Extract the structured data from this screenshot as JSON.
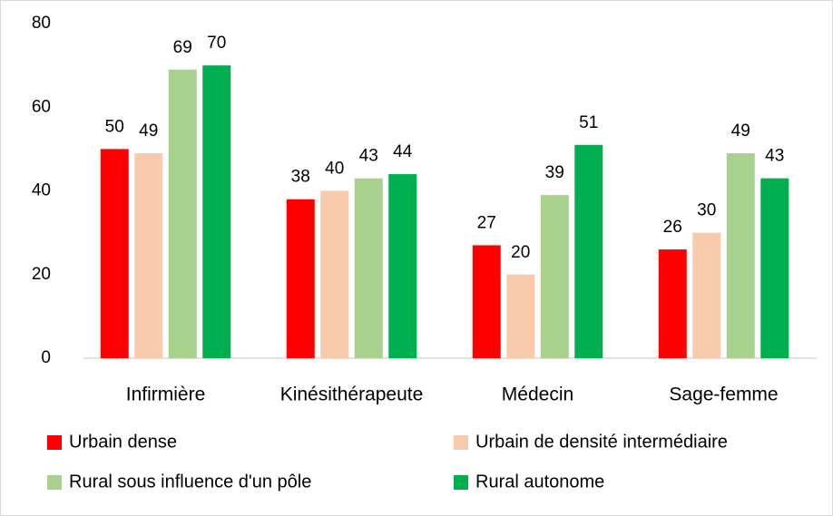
{
  "chart_data": {
    "type": "bar",
    "categories": [
      "Infirmière",
      "Kinésithérapeute",
      "Médecin",
      "Sage-femme"
    ],
    "series": [
      {
        "name": "Urbain dense",
        "color": "#ff0000",
        "values": [
          50,
          38,
          27,
          26
        ]
      },
      {
        "name": "Urbain de densité intermédiaire",
        "color": "#f8cbad",
        "values": [
          49,
          40,
          20,
          30
        ]
      },
      {
        "name": "Rural sous influence d'un pôle",
        "color": "#a9d18e",
        "values": [
          69,
          43,
          39,
          49
        ]
      },
      {
        "name": "Rural autonome",
        "color": "#00b050",
        "values": [
          70,
          44,
          51,
          43
        ]
      }
    ],
    "ylim": [
      0,
      80
    ],
    "yticks": [
      0,
      20,
      40,
      60,
      80
    ],
    "grid": false,
    "legend": "bottom"
  }
}
